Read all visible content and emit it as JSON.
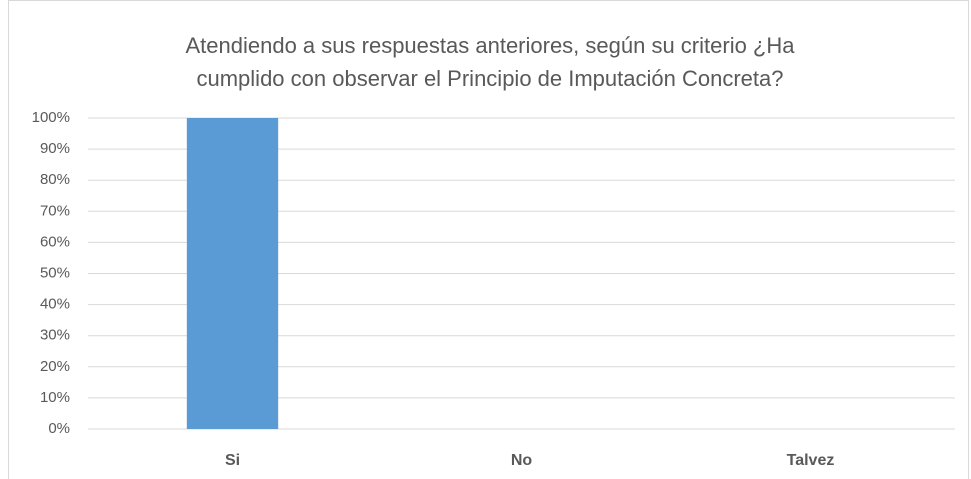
{
  "chart_data": {
    "type": "bar",
    "title": [
      "Atendiendo a sus respuestas anteriores, según su criterio ¿Ha",
      "cumplido con observar el Principio de Imputación Concreta?"
    ],
    "categories": [
      "Si",
      "No",
      "Talvez"
    ],
    "values": [
      100,
      0,
      0
    ],
    "color": "#5b9bd5",
    "ylim": [
      0,
      100
    ],
    "yticks": [
      {
        "value": 0,
        "label": "0%"
      },
      {
        "value": 10,
        "label": "10%"
      },
      {
        "value": 20,
        "label": "20%"
      },
      {
        "value": 30,
        "label": "30%"
      },
      {
        "value": 40,
        "label": "40%"
      },
      {
        "value": 50,
        "label": "50%"
      },
      {
        "value": 60,
        "label": "60%"
      },
      {
        "value": 70,
        "label": "70%"
      },
      {
        "value": 80,
        "label": "80%"
      },
      {
        "value": 90,
        "label": "90%"
      },
      {
        "value": 100,
        "label": "100%"
      }
    ],
    "grid": true
  }
}
